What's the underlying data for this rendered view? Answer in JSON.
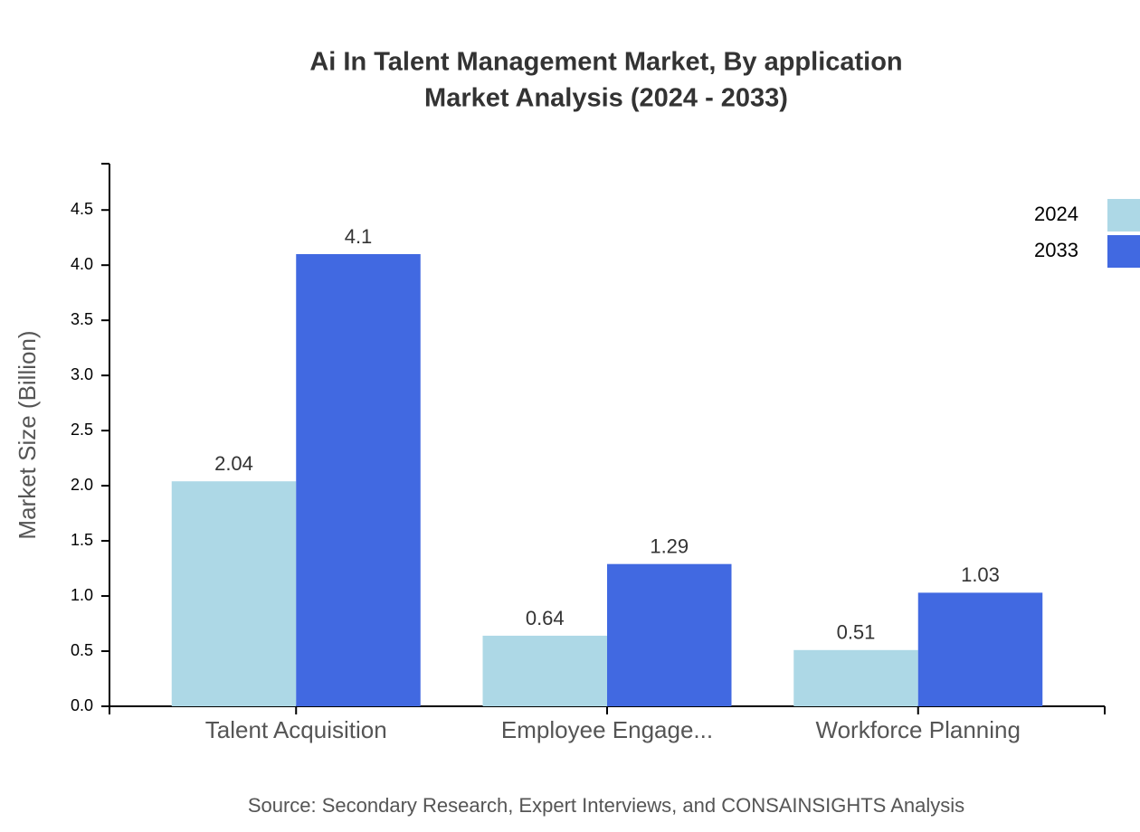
{
  "chart_data": {
    "type": "bar",
    "title": "Ai In Talent Management Market, By application",
    "subtitle": "Market Analysis (2024 - 2033)",
    "y_label": "Market Size (Billion)",
    "source": "Source: Secondary Research, Expert Interviews, and CONSAINSIGHTS Analysis",
    "categories": [
      "Talent Acquisition",
      "Employee Engage...",
      "Workforce Planning"
    ],
    "series": [
      {
        "name": "2024",
        "color": "#add8e6",
        "values": [
          2.04,
          0.64,
          0.51
        ]
      },
      {
        "name": "2033",
        "color": "#4169e1",
        "values": [
          4.1,
          1.29,
          1.03
        ]
      }
    ],
    "ylim": [
      0,
      4.92
    ],
    "yticks": [
      {
        "value": 0,
        "label": "0.0"
      },
      0.5,
      {
        "value": 1,
        "label": "1.0"
      },
      1.5,
      {
        "value": 2,
        "label": "2.0"
      },
      2.5,
      {
        "value": 3,
        "label": "3.0"
      },
      3.5,
      {
        "value": 4,
        "label": "4.0"
      },
      4.5
    ],
    "legend": "top-right"
  }
}
